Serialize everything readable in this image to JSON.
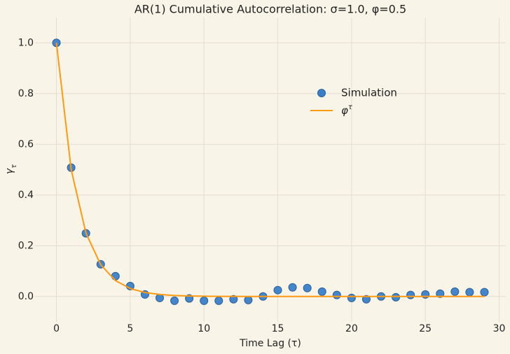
{
  "chart_data": {
    "type": "scatter",
    "title": "AR(1) Cumulative Autocorrelation: σ=1.0, φ=0.5",
    "x_label": "Time Lag (τ)",
    "y_label": "γτ",
    "xlim": [
      -1.45,
      30.45
    ],
    "ylim": [
      -0.1,
      1.1
    ],
    "xticks": [
      0,
      5,
      10,
      15,
      20,
      25,
      30
    ],
    "yticks": [
      {
        "value": 0,
        "label": "0.0"
      },
      0.2,
      0.4,
      0.6,
      0.8,
      {
        "value": 1,
        "label": "1.0"
      }
    ],
    "grid": true,
    "legend": "upper right",
    "series": [
      {
        "name": "Simulation",
        "mode": "markers",
        "color": "#3a80c9",
        "x": [
          0,
          1,
          2,
          3,
          4,
          5,
          6,
          7,
          8,
          9,
          10,
          11,
          12,
          13,
          14,
          15,
          16,
          17,
          18,
          19,
          20,
          21,
          22,
          23,
          24,
          25,
          26,
          27,
          28,
          29
        ],
        "values": [
          1.0,
          0.508,
          0.249,
          0.127,
          0.08,
          0.041,
          0.008,
          -0.006,
          -0.017,
          -0.008,
          -0.017,
          -0.017,
          -0.011,
          -0.014,
          0.0,
          0.025,
          0.036,
          0.033,
          0.019,
          0.006,
          -0.006,
          -0.011,
          0.0,
          -0.003,
          0.006,
          0.008,
          0.011,
          0.019,
          0.017,
          0.017
        ]
      },
      {
        "name": "φτ",
        "mode": "line",
        "color": "#ff9a10",
        "x": [
          0,
          1,
          2,
          3,
          4,
          5,
          6,
          7,
          8,
          9,
          10,
          11,
          12,
          13,
          14,
          15,
          16,
          17,
          18,
          19,
          20,
          21,
          22,
          23,
          24,
          25,
          26,
          27,
          28,
          29
        ],
        "values": [
          1,
          0.5,
          0.25,
          0.125,
          0.0625,
          0.03125,
          0.015625,
          0.0078125,
          0.00390625,
          0.001953,
          0.000977,
          0.000488,
          0.000244,
          0.000122,
          6.1e-05,
          3.1e-05,
          1.5e-05,
          8e-06,
          4e-06,
          2e-06,
          1e-06,
          0,
          0,
          0,
          0,
          0,
          0,
          0,
          0,
          0
        ]
      }
    ]
  }
}
